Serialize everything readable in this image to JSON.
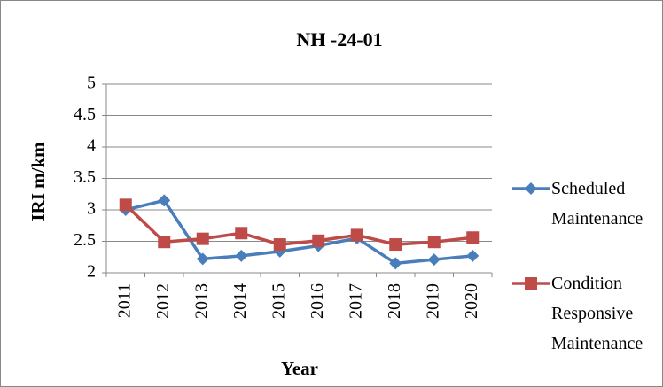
{
  "chart_data": {
    "type": "line",
    "title": "NH -24-01",
    "x_label": "Year",
    "y_label": "IRI m/km",
    "categories": [
      "2011",
      "2012",
      "2013",
      "2014",
      "2015",
      "2016",
      "2017",
      "2018",
      "2019",
      "2020"
    ],
    "series": [
      {
        "name": "Scheduled Maintenance",
        "color": "#4a7ebb",
        "marker": "diamond",
        "values": [
          3.0,
          3.15,
          2.22,
          2.27,
          2.34,
          2.43,
          2.55,
          2.15,
          2.21,
          2.27
        ]
      },
      {
        "name": "Condition Responsive Maintenance",
        "color": "#be4b48",
        "marker": "square",
        "values": [
          3.08,
          2.49,
          2.54,
          2.63,
          2.45,
          2.51,
          2.6,
          2.45,
          2.49,
          2.56
        ]
      }
    ],
    "ylim": [
      2,
      5
    ],
    "yticks": [
      2,
      2.5,
      3,
      3.5,
      4,
      4.5,
      5
    ],
    "grid": true,
    "legend": "right"
  }
}
